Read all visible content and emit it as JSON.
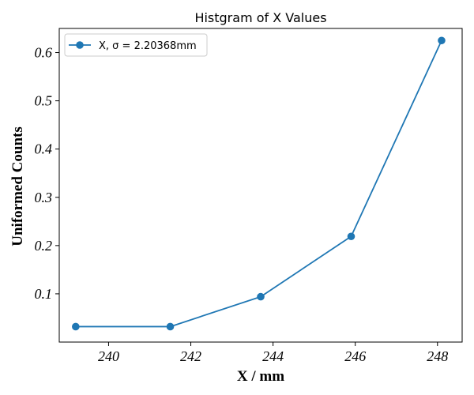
{
  "chart_data": {
    "type": "line",
    "title": "Histgram of X Values",
    "xlabel": "X / mm",
    "ylabel": "Uniformed Counts",
    "xlim": [
      238.8,
      248.6
    ],
    "ylim": [
      0.0,
      0.65
    ],
    "xticks": [
      240,
      242,
      244,
      246,
      248
    ],
    "yticks": [
      0.1,
      0.2,
      0.3,
      0.4,
      0.5,
      0.6
    ],
    "grid": false,
    "legend_position": "top-left",
    "series": [
      {
        "name": "X, σ = 2.20368mm",
        "color": "#1f77b4",
        "marker": "circle",
        "x": [
          239.2,
          241.5,
          243.7,
          245.9,
          248.1
        ],
        "y": [
          0.032,
          0.032,
          0.094,
          0.219,
          0.625
        ]
      }
    ]
  }
}
